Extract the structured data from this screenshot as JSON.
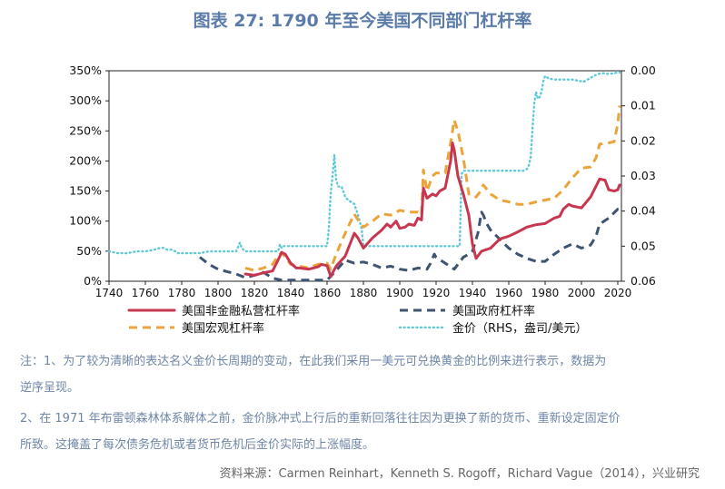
{
  "title": "图表 27: 1790 年至今美国不同部门杠杆率",
  "notes": [
    "注：1、为了较为清晰的表达名义金价长周期的变动，在此我们采用一美元可兑换黄金的比例来进行表示，数据为",
    "逆序呈现。",
    "2、在 1971 年布雷顿森林体系解体之前，金价脉冲式上行后的重新回落往往因为更换了新的货币、重新设定固定价",
    "所致。这掩盖了每次债务危机或者货币危机后金价实际的上涨幅度。"
  ],
  "source": "资料来源：Carmen Reinhart，Kenneth S. Rogoff，Richard Vague（2014），兴业研究",
  "colors": {
    "title": "#5b7ba8",
    "nonfinancial": "#c8364f",
    "government": "#3e5470",
    "macro": "#eba33a",
    "gold": "#5fc9d6"
  },
  "chart_data": {
    "type": "line",
    "xlim": [
      1740,
      2022
    ],
    "x_ticks": [
      "1740",
      "1760",
      "1780",
      "1800",
      "1820",
      "1840",
      "1860",
      "1880",
      "1900",
      "1920",
      "1940",
      "1960",
      "1980",
      "2000",
      "2020"
    ],
    "y_left": {
      "ylim": [
        0,
        350
      ],
      "ticks": [
        "0%",
        "50%",
        "100%",
        "150%",
        "200%",
        "250%",
        "300%",
        "350%"
      ]
    },
    "y_right": {
      "ylim": [
        0.06,
        0.0
      ],
      "inverted": true,
      "ticks": [
        "0.00",
        "0.01",
        "0.02",
        "0.03",
        "0.04",
        "0.05",
        "0.06"
      ]
    },
    "legend": {
      "position": "bottom",
      "entries": [
        {
          "key": "nonfinancial",
          "label": "美国非金融私营杠杆率"
        },
        {
          "key": "government",
          "label": "美国政府杠杆率"
        },
        {
          "key": "macro",
          "label": "美国宏观杠杆率"
        },
        {
          "key": "gold",
          "label": "金价（RHS，盎司/美元）"
        }
      ]
    },
    "series": [
      {
        "key": "nonfinancial",
        "name": "美国非金融私营杠杆率",
        "axis": "left",
        "style": "solid",
        "x": [
          1815,
          1820,
          1825,
          1830,
          1833,
          1835,
          1837,
          1840,
          1843,
          1845,
          1850,
          1855,
          1857,
          1860,
          1862,
          1865,
          1870,
          1875,
          1877,
          1880,
          1885,
          1890,
          1893,
          1895,
          1898,
          1900,
          1903,
          1905,
          1908,
          1910,
          1912,
          1913,
          1915,
          1918,
          1920,
          1922,
          1925,
          1928,
          1929,
          1930,
          1932,
          1935,
          1938,
          1940,
          1942,
          1945,
          1950,
          1955,
          1960,
          1965,
          1970,
          1975,
          1980,
          1985,
          1988,
          1990,
          1993,
          1995,
          2000,
          2005,
          2008,
          2010,
          2013,
          2015,
          2018,
          2020,
          2021
        ],
        "values": [
          12,
          10,
          14,
          17,
          35,
          48,
          45,
          30,
          22,
          22,
          20,
          24,
          28,
          26,
          8,
          25,
          42,
          80,
          72,
          55,
          72,
          85,
          95,
          90,
          100,
          88,
          90,
          95,
          93,
          105,
          102,
          155,
          138,
          145,
          142,
          150,
          155,
          200,
          230,
          218,
          175,
          145,
          110,
          62,
          38,
          50,
          55,
          70,
          75,
          82,
          90,
          94,
          96,
          105,
          108,
          120,
          128,
          125,
          122,
          140,
          158,
          170,
          168,
          152,
          150,
          152,
          160
        ]
      },
      {
        "key": "government",
        "name": "美国政府杠杆率",
        "axis": "left",
        "style": "dash",
        "x": [
          1790,
          1795,
          1800,
          1805,
          1810,
          1815,
          1820,
          1825,
          1830,
          1835,
          1840,
          1845,
          1850,
          1855,
          1860,
          1862,
          1865,
          1870,
          1875,
          1880,
          1885,
          1890,
          1895,
          1900,
          1905,
          1910,
          1915,
          1917,
          1919,
          1920,
          1925,
          1930,
          1932,
          1935,
          1938,
          1940,
          1943,
          1945,
          1946,
          1948,
          1950,
          1955,
          1960,
          1965,
          1970,
          1975,
          1980,
          1985,
          1990,
          1995,
          2000,
          2005,
          2008,
          2010,
          2015,
          2020,
          2021
        ],
        "values": [
          40,
          28,
          20,
          16,
          12,
          6,
          10,
          15,
          5,
          2,
          2,
          2,
          2,
          2,
          2,
          8,
          18,
          35,
          30,
          32,
          28,
          22,
          25,
          20,
          18,
          22,
          20,
          30,
          45,
          40,
          30,
          20,
          28,
          40,
          45,
          50,
          80,
          115,
          110,
          95,
          85,
          70,
          55,
          45,
          38,
          33,
          33,
          45,
          55,
          62,
          55,
          60,
          75,
          95,
          105,
          120,
          120
        ]
      },
      {
        "key": "macro",
        "name": "美国宏观杠杆率",
        "axis": "left",
        "style": "dash",
        "x": [
          1815,
          1820,
          1825,
          1830,
          1833,
          1835,
          1837,
          1840,
          1845,
          1850,
          1855,
          1860,
          1862,
          1865,
          1870,
          1875,
          1877,
          1880,
          1885,
          1890,
          1895,
          1900,
          1905,
          1910,
          1912,
          1913,
          1915,
          1918,
          1920,
          1925,
          1928,
          1930,
          1932,
          1935,
          1938,
          1940,
          1942,
          1944,
          1946,
          1950,
          1955,
          1960,
          1965,
          1970,
          1975,
          1980,
          1985,
          1990,
          1995,
          2000,
          2005,
          2008,
          2010,
          2015,
          2018,
          2020,
          2021
        ],
        "values": [
          22,
          18,
          22,
          28,
          42,
          48,
          40,
          28,
          25,
          22,
          28,
          30,
          20,
          45,
          80,
          112,
          102,
          90,
          100,
          112,
          110,
          118,
          115,
          115,
          110,
          185,
          150,
          175,
          180,
          180,
          230,
          268,
          250,
          205,
          145,
          145,
          140,
          148,
          160,
          145,
          135,
          132,
          128,
          128,
          132,
          135,
          138,
          152,
          172,
          188,
          190,
          205,
          228,
          230,
          232,
          262,
          292
        ]
      },
      {
        "key": "gold",
        "name": "金价（RHS，盎司/美元）",
        "axis": "right",
        "style": "dot",
        "x": [
          1740,
          1745,
          1750,
          1755,
          1760,
          1765,
          1768,
          1770,
          1772,
          1775,
          1778,
          1780,
          1785,
          1790,
          1795,
          1800,
          1805,
          1810,
          1812,
          1813,
          1815,
          1818,
          1820,
          1825,
          1830,
          1833,
          1834,
          1835,
          1836,
          1840,
          1845,
          1850,
          1855,
          1860,
          1861,
          1862,
          1863,
          1864,
          1865,
          1866,
          1868,
          1870,
          1872,
          1875,
          1877,
          1879,
          1880,
          1885,
          1890,
          1900,
          1910,
          1920,
          1930,
          1933,
          1934,
          1935,
          1940,
          1950,
          1960,
          1965,
          1968,
          1970,
          1971,
          1972,
          1973,
          1974,
          1975,
          1976,
          1977,
          1978,
          1979,
          1980,
          1982,
          1985,
          1988,
          1990,
          1995,
          2000,
          2001,
          2005,
          2008,
          2010,
          2012,
          2015,
          2018,
          2020,
          2021
        ],
        "values": [
          0.0515,
          0.052,
          0.052,
          0.0515,
          0.0515,
          0.051,
          0.0505,
          0.0505,
          0.051,
          0.051,
          0.052,
          0.052,
          0.052,
          0.052,
          0.0515,
          0.0515,
          0.0515,
          0.0515,
          0.049,
          0.0505,
          0.0515,
          0.0515,
          0.0515,
          0.0515,
          0.0515,
          0.0515,
          0.0495,
          0.0505,
          0.05,
          0.05,
          0.05,
          0.05,
          0.05,
          0.05,
          0.045,
          0.035,
          0.03,
          0.024,
          0.031,
          0.033,
          0.033,
          0.036,
          0.037,
          0.038,
          0.041,
          0.045,
          0.05,
          0.05,
          0.05,
          0.05,
          0.05,
          0.05,
          0.05,
          0.05,
          0.0295,
          0.0285,
          0.0285,
          0.0285,
          0.0285,
          0.0285,
          0.0285,
          0.028,
          0.027,
          0.025,
          0.017,
          0.0095,
          0.006,
          0.008,
          0.0075,
          0.006,
          0.003,
          0.0015,
          0.0022,
          0.0025,
          0.0025,
          0.0025,
          0.0025,
          0.003,
          0.0032,
          0.002,
          0.0012,
          0.0008,
          0.0007,
          0.0009,
          0.0007,
          0.0005,
          0.0005
        ]
      }
    ]
  }
}
